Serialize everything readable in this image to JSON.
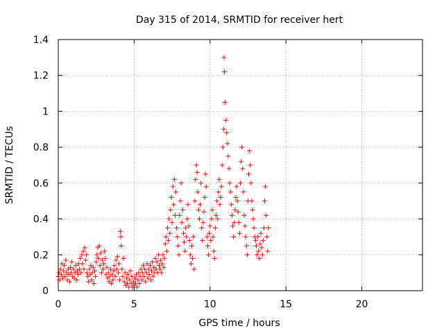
{
  "chart_data": {
    "type": "scatter",
    "title": "Day 315 of 2014, SRMTID for receiver hert",
    "xlabel": "GPS time / hours",
    "ylabel": "SRMTID / TECUs",
    "xlim": [
      0,
      24
    ],
    "ylim": [
      0,
      1.4
    ],
    "xticks": [
      0,
      5,
      10,
      15,
      20
    ],
    "yticks": [
      0,
      0.2,
      0.4,
      0.6,
      0.8,
      1,
      1.2,
      1.4
    ],
    "xtick_labels": [
      "0",
      "5",
      "10",
      "15",
      "20"
    ],
    "ytick_labels": [
      "0",
      "0.2",
      "0.4",
      "0.6",
      "0.8",
      "1",
      "1.2",
      "1.4"
    ],
    "grid": true,
    "marker": "plus",
    "color": "#ff0000",
    "series": [
      {
        "points": [
          [
            0.0,
            0.08
          ],
          [
            0.05,
            0.1
          ],
          [
            0.1,
            0.06
          ],
          [
            0.15,
            0.12
          ],
          [
            0.2,
            0.09
          ],
          [
            0.25,
            0.15
          ],
          [
            0.3,
            0.07
          ],
          [
            0.35,
            0.11
          ],
          [
            0.4,
            0.14
          ],
          [
            0.45,
            0.08
          ],
          [
            0.5,
            0.17
          ],
          [
            0.55,
            0.1
          ],
          [
            0.6,
            0.06
          ],
          [
            0.65,
            0.12
          ],
          [
            0.7,
            0.09
          ],
          [
            0.75,
            0.05
          ],
          [
            0.8,
            0.13
          ],
          [
            0.85,
            0.1
          ],
          [
            0.9,
            0.16
          ],
          [
            0.95,
            0.08
          ],
          [
            1.0,
            0.12
          ],
          [
            1.05,
            0.07
          ],
          [
            1.1,
            0.1
          ],
          [
            1.15,
            0.14
          ],
          [
            1.2,
            0.06
          ],
          [
            1.25,
            0.11
          ],
          [
            1.3,
            0.09
          ],
          [
            1.35,
            0.15
          ],
          [
            1.4,
            0.12
          ],
          [
            1.45,
            0.18
          ],
          [
            1.5,
            0.1
          ],
          [
            1.55,
            0.2
          ],
          [
            1.6,
            0.15
          ],
          [
            1.65,
            0.22
          ],
          [
            1.7,
            0.12
          ],
          [
            1.75,
            0.24
          ],
          [
            1.8,
            0.17
          ],
          [
            1.85,
            0.2
          ],
          [
            1.9,
            0.1
          ],
          [
            1.95,
            0.08
          ],
          [
            2.0,
            0.05
          ],
          [
            2.05,
            0.12
          ],
          [
            2.1,
            0.09
          ],
          [
            2.15,
            0.14
          ],
          [
            2.2,
            0.06
          ],
          [
            2.25,
            0.1
          ],
          [
            2.3,
            0.13
          ],
          [
            2.35,
            0.04
          ],
          [
            2.4,
            0.11
          ],
          [
            2.45,
            0.08
          ],
          [
            2.5,
            0.16
          ],
          [
            2.55,
            0.2
          ],
          [
            2.6,
            0.24
          ],
          [
            2.65,
            0.18
          ],
          [
            2.7,
            0.25
          ],
          [
            2.75,
            0.14
          ],
          [
            2.8,
            0.21
          ],
          [
            2.85,
            0.1
          ],
          [
            2.9,
            0.17
          ],
          [
            2.95,
            0.12
          ],
          [
            3.0,
            0.15
          ],
          [
            3.05,
            0.22
          ],
          [
            3.1,
            0.18
          ],
          [
            3.15,
            0.09
          ],
          [
            3.2,
            0.13
          ],
          [
            3.25,
            0.07
          ],
          [
            3.3,
            0.1
          ],
          [
            3.35,
            0.05
          ],
          [
            3.4,
            0.08
          ],
          [
            3.45,
            0.12
          ],
          [
            3.5,
            0.04
          ],
          [
            3.55,
            0.09
          ],
          [
            3.6,
            0.06
          ],
          [
            3.65,
            0.11
          ],
          [
            3.7,
            0.14
          ],
          [
            3.75,
            0.08
          ],
          [
            3.8,
            0.17
          ],
          [
            3.85,
            0.12
          ],
          [
            3.9,
            0.19
          ],
          [
            3.95,
            0.1
          ],
          [
            4.0,
            0.15
          ],
          [
            4.05,
            0.06
          ],
          [
            4.1,
            0.33
          ],
          [
            4.12,
            0.3
          ],
          [
            4.15,
            0.25
          ],
          [
            4.2,
            0.12
          ],
          [
            4.25,
            0.08
          ],
          [
            4.3,
            0.18
          ],
          [
            4.35,
            0.05
          ],
          [
            4.4,
            0.1
          ],
          [
            4.45,
            0.03
          ],
          [
            4.5,
            0.07
          ],
          [
            4.55,
            0.04
          ],
          [
            4.6,
            0.09
          ],
          [
            4.65,
            0.02
          ],
          [
            4.7,
            0.06
          ],
          [
            4.75,
            0.11
          ],
          [
            4.8,
            0.04
          ],
          [
            4.85,
            0.08
          ],
          [
            4.9,
            0.02
          ],
          [
            4.95,
            0.05
          ],
          [
            5.0,
            0.03
          ],
          [
            5.05,
            0.07
          ],
          [
            5.1,
            0.04
          ],
          [
            5.15,
            0.09
          ],
          [
            5.2,
            0.02
          ],
          [
            5.25,
            0.06
          ],
          [
            5.3,
            0.1
          ],
          [
            5.35,
            0.04
          ],
          [
            5.4,
            0.08
          ],
          [
            5.45,
            0.12
          ],
          [
            5.5,
            0.06
          ],
          [
            5.55,
            0.1
          ],
          [
            5.6,
            0.14
          ],
          [
            5.65,
            0.08
          ],
          [
            5.7,
            0.12
          ],
          [
            5.75,
            0.05
          ],
          [
            5.8,
            0.1
          ],
          [
            5.85,
            0.15
          ],
          [
            5.9,
            0.07
          ],
          [
            5.95,
            0.12
          ],
          [
            6.0,
            0.09
          ],
          [
            6.05,
            0.14
          ],
          [
            6.1,
            0.06
          ],
          [
            6.15,
            0.11
          ],
          [
            6.2,
            0.16
          ],
          [
            6.25,
            0.08
          ],
          [
            6.3,
            0.13
          ],
          [
            6.35,
            0.1
          ],
          [
            6.4,
            0.18
          ],
          [
            6.45,
            0.12
          ],
          [
            6.5,
            0.16
          ],
          [
            6.55,
            0.1
          ],
          [
            6.6,
            0.2
          ],
          [
            6.65,
            0.14
          ],
          [
            6.7,
            0.12
          ],
          [
            6.75,
            0.17
          ],
          [
            6.8,
            0.1
          ],
          [
            6.85,
            0.15
          ],
          [
            6.9,
            0.2
          ],
          [
            6.95,
            0.13
          ],
          [
            7.0,
            0.18
          ],
          [
            7.05,
            0.26
          ],
          [
            7.1,
            0.3
          ],
          [
            7.15,
            0.22
          ],
          [
            7.2,
            0.35
          ],
          [
            7.25,
            0.28
          ],
          [
            7.3,
            0.4
          ],
          [
            7.35,
            0.32
          ],
          [
            7.4,
            0.45
          ],
          [
            7.45,
            0.52
          ],
          [
            7.5,
            0.38
          ],
          [
            7.55,
            0.58
          ],
          [
            7.6,
            0.48
          ],
          [
            7.65,
            0.62
          ],
          [
            7.7,
            0.42
          ],
          [
            7.75,
            0.55
          ],
          [
            7.8,
            0.35
          ],
          [
            7.85,
            0.3
          ],
          [
            7.9,
            0.25
          ],
          [
            7.95,
            0.2
          ],
          [
            8.0,
            0.42
          ],
          [
            8.05,
            0.5
          ],
          [
            8.1,
            0.6
          ],
          [
            8.15,
            0.38
          ],
          [
            8.2,
            0.45
          ],
          [
            8.25,
            0.32
          ],
          [
            8.3,
            0.27
          ],
          [
            8.35,
            0.22
          ],
          [
            8.4,
            0.35
          ],
          [
            8.45,
            0.3
          ],
          [
            8.5,
            0.4
          ],
          [
            8.55,
            0.48
          ],
          [
            8.6,
            0.36
          ],
          [
            8.65,
            0.28
          ],
          [
            8.7,
            0.2
          ],
          [
            8.75,
            0.15
          ],
          [
            8.8,
            0.25
          ],
          [
            8.85,
            0.18
          ],
          [
            8.9,
            0.3
          ],
          [
            8.95,
            0.12
          ],
          [
            9.0,
            0.5
          ],
          [
            9.05,
            0.62
          ],
          [
            9.1,
            0.7
          ],
          [
            9.15,
            0.66
          ],
          [
            9.2,
            0.55
          ],
          [
            9.25,
            0.45
          ],
          [
            9.3,
            0.4
          ],
          [
            9.35,
            0.48
          ],
          [
            9.4,
            0.6
          ],
          [
            9.45,
            0.35
          ],
          [
            9.5,
            0.28
          ],
          [
            9.55,
            0.38
          ],
          [
            9.6,
            0.44
          ],
          [
            9.65,
            0.52
          ],
          [
            9.7,
            0.65
          ],
          [
            9.75,
            0.58
          ],
          [
            9.8,
            0.3
          ],
          [
            9.85,
            0.25
          ],
          [
            9.9,
            0.2
          ],
          [
            9.95,
            0.32
          ],
          [
            10.0,
            0.36
          ],
          [
            10.05,
            0.28
          ],
          [
            10.1,
            0.4
          ],
          [
            10.15,
            0.45
          ],
          [
            10.2,
            0.3
          ],
          [
            10.25,
            0.22
          ],
          [
            10.3,
            0.18
          ],
          [
            10.35,
            0.35
          ],
          [
            10.4,
            0.42
          ],
          [
            10.45,
            0.5
          ],
          [
            10.5,
            0.4
          ],
          [
            10.55,
            0.55
          ],
          [
            10.6,
            0.62
          ],
          [
            10.65,
            0.48
          ],
          [
            10.7,
            0.52
          ],
          [
            10.75,
            0.58
          ],
          [
            10.8,
            0.7
          ],
          [
            10.85,
            0.8
          ],
          [
            10.9,
            0.9
          ],
          [
            10.92,
            1.3
          ],
          [
            10.95,
            1.22
          ],
          [
            11.0,
            1.05
          ],
          [
            11.05,
            0.95
          ],
          [
            11.1,
            0.88
          ],
          [
            11.15,
            0.82
          ],
          [
            11.2,
            0.75
          ],
          [
            11.25,
            0.68
          ],
          [
            11.3,
            0.6
          ],
          [
            11.35,
            0.55
          ],
          [
            11.4,
            0.48
          ],
          [
            11.45,
            0.42
          ],
          [
            11.5,
            0.36
          ],
          [
            11.55,
            0.3
          ],
          [
            11.6,
            0.38
          ],
          [
            11.65,
            0.45
          ],
          [
            11.7,
            0.52
          ],
          [
            11.75,
            0.58
          ],
          [
            11.8,
            0.5
          ],
          [
            11.85,
            0.44
          ],
          [
            11.9,
            0.38
          ],
          [
            11.95,
            0.32
          ],
          [
            12.0,
            0.6
          ],
          [
            12.05,
            0.72
          ],
          [
            12.1,
            0.8
          ],
          [
            12.15,
            0.68
          ],
          [
            12.2,
            0.55
          ],
          [
            12.25,
            0.42
          ],
          [
            12.3,
            0.36
          ],
          [
            12.35,
            0.3
          ],
          [
            12.4,
            0.25
          ],
          [
            12.45,
            0.2
          ],
          [
            12.5,
            0.5
          ],
          [
            12.55,
            0.65
          ],
          [
            12.6,
            0.78
          ],
          [
            12.65,
            0.7
          ],
          [
            12.7,
            0.6
          ],
          [
            12.75,
            0.5
          ],
          [
            12.8,
            0.45
          ],
          [
            12.85,
            0.4
          ],
          [
            12.9,
            0.35
          ],
          [
            12.95,
            0.3
          ],
          [
            13.0,
            0.28
          ],
          [
            13.05,
            0.25
          ],
          [
            13.1,
            0.2
          ],
          [
            13.15,
            0.3
          ],
          [
            13.2,
            0.22
          ],
          [
            13.25,
            0.18
          ],
          [
            13.3,
            0.26
          ],
          [
            13.35,
            0.32
          ],
          [
            13.4,
            0.24
          ],
          [
            13.45,
            0.2
          ],
          [
            13.5,
            0.28
          ],
          [
            13.55,
            0.35
          ],
          [
            13.6,
            0.5
          ],
          [
            13.65,
            0.58
          ],
          [
            13.7,
            0.42
          ],
          [
            13.75,
            0.3
          ],
          [
            13.8,
            0.22
          ],
          [
            13.85,
            0.35
          ]
        ]
      }
    ]
  }
}
